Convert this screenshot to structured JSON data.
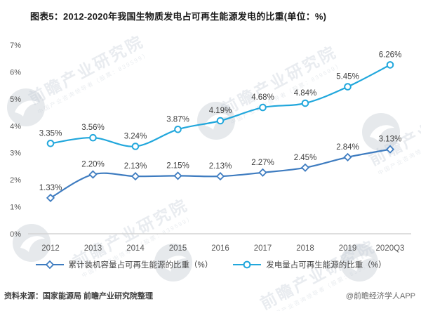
{
  "title": "图表5：2012-2020年我国生物质发电占可再生能源发电的比重(单位：%)",
  "chart_data": {
    "type": "line",
    "title": "图表5：2012-2020年我国生物质发电占可再生能源发电的比重(单位：%)",
    "categories": [
      "2012",
      "2013",
      "2014",
      "2015",
      "2016",
      "2017",
      "2018",
      "2019",
      "2020Q3"
    ],
    "series": [
      {
        "name": "累计装机容量占可再生能源的比重（%）",
        "marker": "diamond",
        "color": "#3E7CC0",
        "values": [
          1.33,
          2.2,
          2.13,
          2.15,
          2.13,
          2.27,
          2.45,
          2.84,
          3.13
        ]
      },
      {
        "name": "发电量占可再生能源的比重（%）",
        "marker": "circle",
        "color": "#21A7DC",
        "values": [
          3.35,
          3.56,
          3.24,
          3.87,
          4.19,
          4.68,
          4.84,
          5.45,
          6.26
        ]
      }
    ],
    "ylim": [
      0,
      7
    ],
    "yticks": [
      0,
      1,
      2,
      3,
      4,
      5,
      6,
      7
    ],
    "ytick_suffix": "%",
    "grid": false,
    "baseline_only": true,
    "data_labels": true,
    "label_decimals": 2,
    "label_suffix": "%",
    "legend_position": "bottom",
    "colors": {
      "axis_label": "#595959",
      "data_label": "#3f3f3f",
      "baseline": "#d4d4d4"
    }
  },
  "footer": {
    "source": "资料来源：国家能源局 前瞻产业研究院整理",
    "credit": "@前瞻经济学人APP"
  },
  "watermark": {
    "text": "前瞻产业研究院",
    "subtext": "中国产业咨询领导者（股票：839599）"
  }
}
